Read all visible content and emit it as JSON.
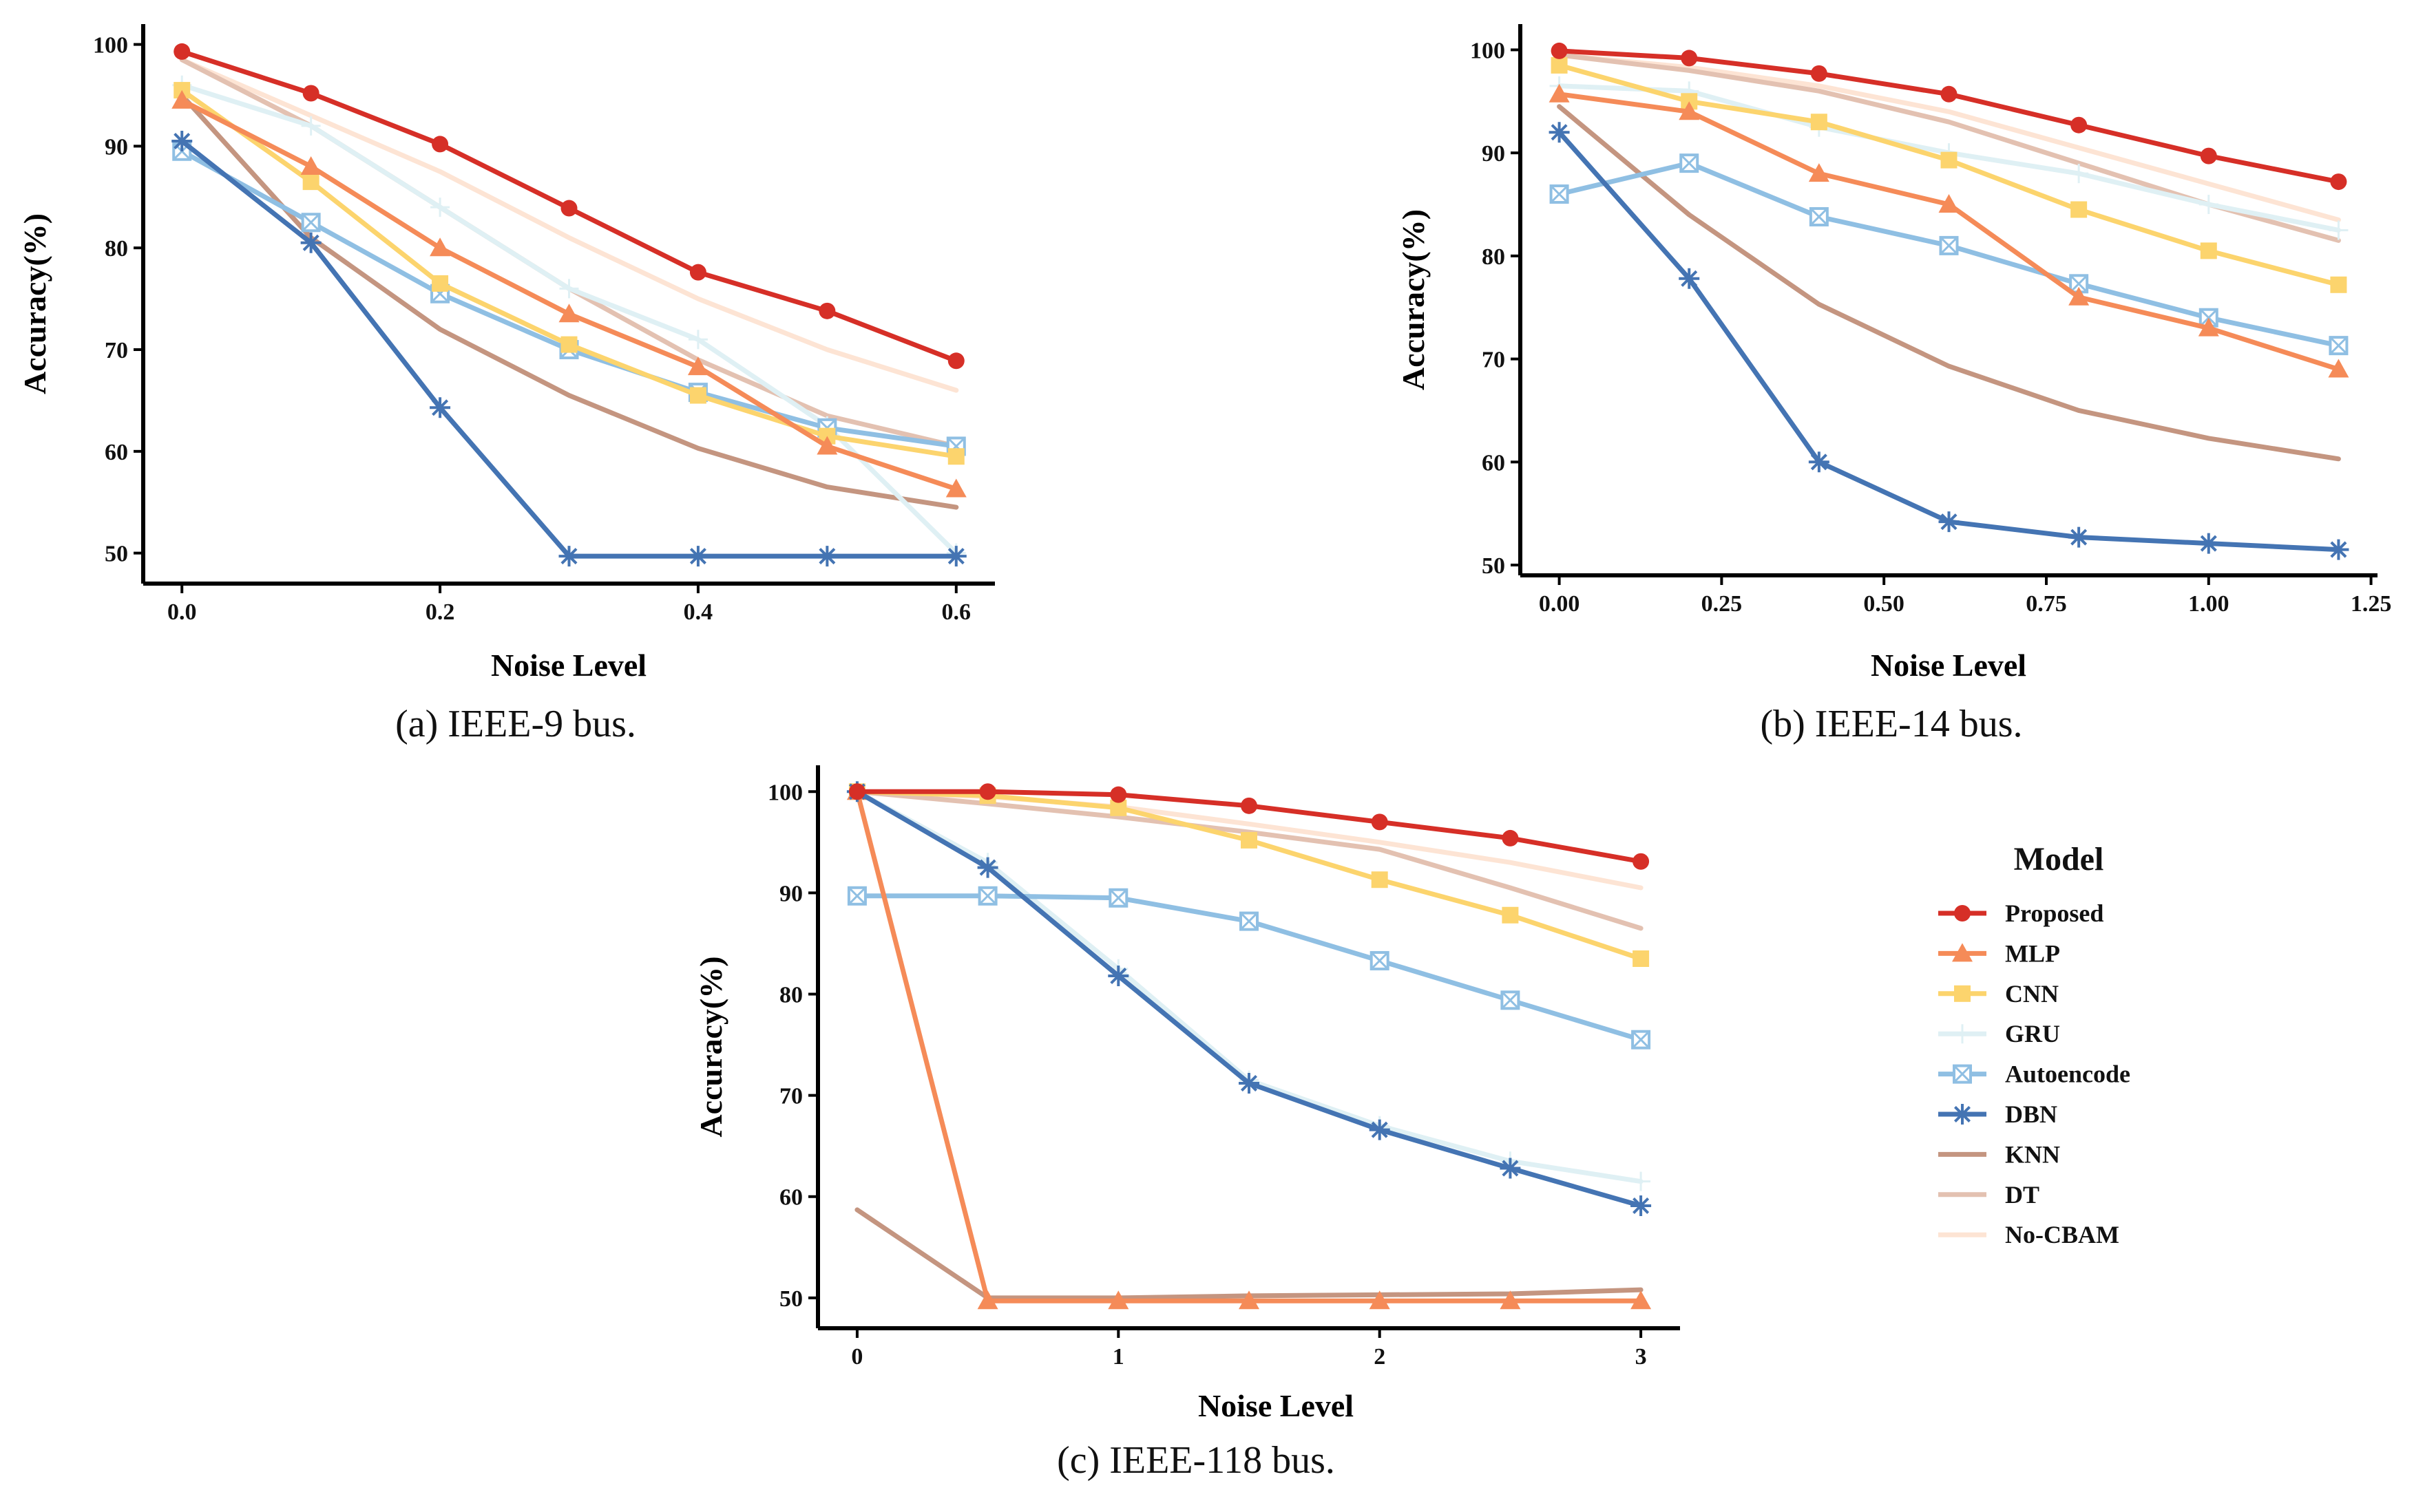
{
  "legend": {
    "title": "Model",
    "placement": "right, beside panel (c)"
  },
  "styles": {
    "Proposed": {
      "color": "#d62f27",
      "marker": "circle"
    },
    "MLP": {
      "color": "#f58b58",
      "marker": "triangle"
    },
    "CNN": {
      "color": "#fcd46d",
      "marker": "square"
    },
    "GRU": {
      "color": "#dff0f4",
      "marker": "plus"
    },
    "Autoencode": {
      "color": "#8fbfe3",
      "marker": "boxx"
    },
    "DBN": {
      "color": "#4474b3",
      "marker": "star"
    },
    "KNN": {
      "color": "#c49580",
      "marker": "none"
    },
    "DT": {
      "color": "#e3c1b1",
      "marker": "none"
    },
    "No-CBAM": {
      "color": "#fde4d4",
      "marker": "none"
    }
  },
  "chart_data": [
    {
      "type": "line",
      "caption": "(a) IEEE-9 bus.",
      "xlabel": "Noise Level",
      "ylabel": "Accuracy(%)",
      "xlim": [
        -0.03,
        0.63
      ],
      "ylim": [
        47,
        102
      ],
      "xticks": [
        0.0,
        0.2,
        0.4,
        0.6
      ],
      "xtick_labels": [
        "0.0",
        "0.2",
        "0.4",
        "0.6"
      ],
      "yticks": [
        50,
        60,
        70,
        80,
        90,
        100
      ],
      "x": [
        0,
        0.1,
        0.2,
        0.3,
        0.4,
        0.5,
        0.6
      ],
      "series": [
        {
          "name": "No-CBAM",
          "values": [
            98.5,
            93.0,
            87.5,
            81.0,
            75.0,
            70.0,
            66.0
          ]
        },
        {
          "name": "DT",
          "values": [
            98.5,
            92.0,
            84.0,
            76.0,
            69.0,
            63.5,
            60.5
          ]
        },
        {
          "name": "KNN",
          "values": [
            95.0,
            81.0,
            72.0,
            65.5,
            60.3,
            56.5,
            54.5
          ]
        },
        {
          "name": "GRU",
          "values": [
            96.0,
            92.0,
            84.0,
            76.0,
            71.0,
            62.5,
            50.0
          ]
        },
        {
          "name": "Autoencode",
          "values": [
            89.5,
            82.5,
            75.5,
            70.0,
            65.8,
            62.3,
            60.5
          ]
        },
        {
          "name": "CNN",
          "values": [
            95.5,
            86.5,
            76.5,
            70.5,
            65.5,
            61.5,
            59.5
          ]
        },
        {
          "name": "MLP",
          "values": [
            94.5,
            88.0,
            80.0,
            73.5,
            68.3,
            60.5,
            56.3
          ]
        },
        {
          "name": "DBN",
          "values": [
            90.5,
            80.5,
            64.3,
            49.7,
            49.7,
            49.7,
            49.7
          ]
        },
        {
          "name": "Proposed",
          "values": [
            99.3,
            95.2,
            90.2,
            83.9,
            77.6,
            73.8,
            68.9
          ]
        }
      ]
    },
    {
      "type": "line",
      "caption": "(b) IEEE-14 bus.",
      "xlabel": "Noise Level",
      "ylabel": "Accuracy(%)",
      "xlim": [
        -0.06,
        1.26
      ],
      "ylim": [
        49,
        102.5
      ],
      "xticks": [
        0.0,
        0.25,
        0.5,
        0.75,
        1.0,
        1.25
      ],
      "xtick_labels": [
        "0.00",
        "0.25",
        "0.50",
        "0.75",
        "1.00",
        "1.25"
      ],
      "yticks": [
        50,
        60,
        70,
        80,
        90,
        100
      ],
      "x": [
        0,
        0.2,
        0.4,
        0.6,
        0.8,
        1.0,
        1.2
      ],
      "series": [
        {
          "name": "No-CBAM",
          "values": [
            99.5,
            98.3,
            96.5,
            94.0,
            90.5,
            87.0,
            83.5
          ]
        },
        {
          "name": "DT",
          "values": [
            99.5,
            98.0,
            96.0,
            93.0,
            89.0,
            85.0,
            81.5
          ]
        },
        {
          "name": "KNN",
          "values": [
            94.5,
            84.0,
            75.3,
            69.3,
            65.0,
            62.3,
            60.3
          ]
        },
        {
          "name": "GRU",
          "values": [
            96.5,
            96.0,
            92.5,
            90.0,
            88.0,
            85.0,
            82.5
          ]
        },
        {
          "name": "Autoencode",
          "values": [
            86.0,
            89.0,
            83.8,
            81.0,
            77.3,
            74.0,
            71.3
          ]
        },
        {
          "name": "CNN",
          "values": [
            98.5,
            95.0,
            93.0,
            89.3,
            84.5,
            80.5,
            77.2
          ]
        },
        {
          "name": "MLP",
          "values": [
            95.7,
            94.0,
            88.0,
            85.0,
            76.0,
            73.0,
            69.0
          ]
        },
        {
          "name": "DBN",
          "values": [
            92.0,
            77.8,
            60.0,
            54.2,
            52.7,
            52.1,
            51.5
          ]
        },
        {
          "name": "Proposed",
          "values": [
            99.9,
            99.2,
            97.7,
            95.7,
            92.7,
            89.7,
            87.2
          ]
        }
      ]
    },
    {
      "type": "line",
      "caption": "(c) IEEE-118 bus.",
      "xlabel": "Noise Level",
      "ylabel": "Accuracy(%)",
      "xlim": [
        -0.15,
        3.15
      ],
      "ylim": [
        47,
        102.6
      ],
      "xticks": [
        0,
        1,
        2,
        3
      ],
      "xtick_labels": [
        "0",
        "1",
        "2",
        "3"
      ],
      "yticks": [
        50,
        60,
        70,
        80,
        90,
        100
      ],
      "x": [
        0,
        0.5,
        1,
        1.5,
        2,
        2.5,
        3
      ],
      "series": [
        {
          "name": "No-CBAM",
          "values": [
            100.0,
            99.5,
            98.5,
            96.8,
            95.0,
            93.0,
            90.5
          ]
        },
        {
          "name": "DT",
          "values": [
            100.0,
            98.8,
            97.5,
            96.0,
            94.3,
            90.5,
            86.5
          ]
        },
        {
          "name": "KNN",
          "values": [
            58.7,
            50.0,
            50.0,
            50.2,
            50.3,
            50.4,
            50.8
          ]
        },
        {
          "name": "GRU",
          "values": [
            100.0,
            93.0,
            82.5,
            71.5,
            67.0,
            63.5,
            61.5
          ]
        },
        {
          "name": "Autoencode",
          "values": [
            89.7,
            89.7,
            89.5,
            87.2,
            83.3,
            79.4,
            75.5
          ]
        },
        {
          "name": "CNN",
          "values": [
            100.0,
            99.6,
            98.4,
            95.2,
            91.3,
            87.8,
            83.5
          ]
        },
        {
          "name": "MLP",
          "values": [
            100.0,
            49.7,
            49.7,
            49.7,
            49.7,
            49.7,
            49.7
          ]
        },
        {
          "name": "DBN",
          "values": [
            100.0,
            92.5,
            81.8,
            71.2,
            66.6,
            62.8,
            59.1
          ]
        },
        {
          "name": "Proposed",
          "values": [
            100.0,
            100.0,
            99.7,
            98.6,
            97.0,
            95.4,
            93.1
          ]
        }
      ]
    }
  ]
}
